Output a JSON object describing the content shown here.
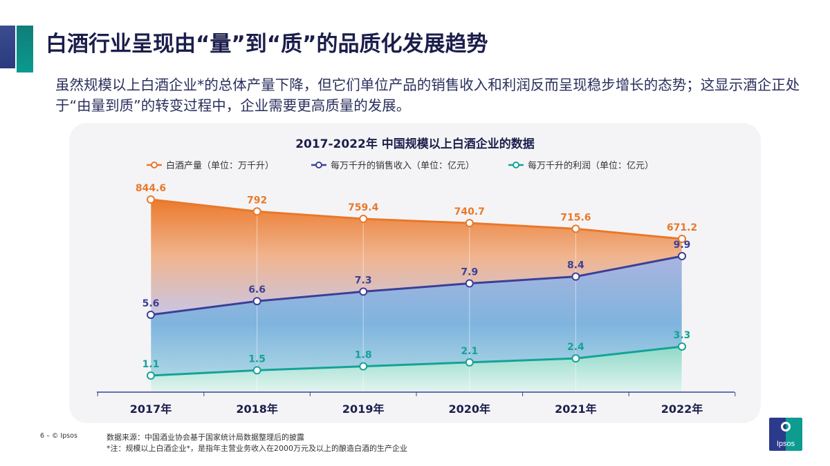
{
  "header": {
    "title": "白酒行业呈现由“量”到“质”的品质化发展趋势",
    "subtitle": "虽然规模以上白酒企业*的总体产量下降，但它们单位产品的销售收入和利润反而呈现稳步增长的态势；这显示酒企正处于“由量到质”的转变过程中，企业需要更高质量的发展。"
  },
  "chart_data": {
    "type": "line",
    "title": "2017-2022年 中国规模以上白酒企业的数据",
    "categories": [
      "2017年",
      "2018年",
      "2019年",
      "2020年",
      "2021年",
      "2022年"
    ],
    "legend_position": "top",
    "grid": "vertical",
    "series": [
      {
        "name": "白酒产量（单位：万千升）",
        "color": "#e8782a",
        "values": [
          844.6,
          792,
          759.4,
          740.7,
          715.6,
          671.2
        ],
        "labels": [
          "844.6",
          "792",
          "759.4",
          "740.7",
          "715.6",
          "671.2"
        ]
      },
      {
        "name": "每万千升的销售收入（单位：亿元）",
        "color": "#3b3f96",
        "values": [
          5.6,
          6.6,
          7.3,
          7.9,
          8.4,
          9.9
        ],
        "labels": [
          "5.6",
          "6.6",
          "7.3",
          "7.9",
          "8.4",
          "9.9"
        ]
      },
      {
        "name": "每万千升的利润（单位：亿元）",
        "color": "#13a396",
        "values": [
          1.1,
          1.5,
          1.8,
          2.1,
          2.4,
          3.3
        ],
        "labels": [
          "1.1",
          "1.5",
          "1.8",
          "2.1",
          "2.4",
          "3.3"
        ]
      }
    ]
  },
  "footer": {
    "page": "6 – © Ipsos",
    "source": "数据来源：中国酒业协会基于国家统计局数据整理后的披露",
    "note": "*注：规模以上白酒企业*，是指年主营业务收入在2000万元及以上的酿造白酒的生产企业",
    "logo": "Ipsos"
  }
}
